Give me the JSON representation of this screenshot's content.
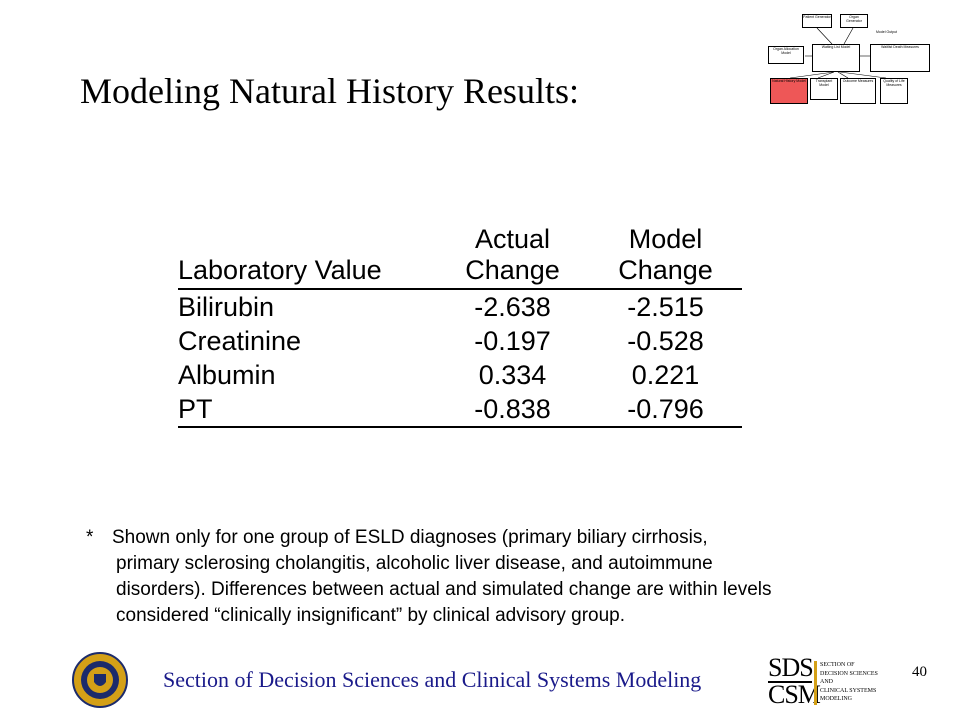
{
  "title": "Modeling Natural History Results:",
  "mini_diagram": {
    "boxes": [
      "Patient Generator",
      "Organ Generator",
      "Organ Allocation Model",
      "Waiting List Model",
      "Natural History Model",
      "Transplant Model",
      "Outcome Measures",
      "Quality of Life Measures",
      "Waitlist Death Measures",
      "Model Output"
    ],
    "highlight_color": "#ee5757"
  },
  "table": {
    "headers": {
      "col1": "Laboratory Value",
      "col2_line1": "Actual",
      "col2_line2": "Change",
      "col3_line1": "Model",
      "col3_line2": "Change"
    },
    "rows": [
      {
        "name": "Bilirubin",
        "actual": "-2.638",
        "model": "-2.515"
      },
      {
        "name": "Creatinine",
        "actual": "-0.197",
        "model": "-0.528"
      },
      {
        "name": "Albumin",
        "actual": "0.334",
        "model": "0.221"
      },
      {
        "name": "PT",
        "actual": "-0.838",
        "model": "-0.796"
      }
    ]
  },
  "note": {
    "star": "*",
    "line1": "Shown only for one group of ESLD diagnoses (primary biliary cirrhosis,",
    "line2": "primary sclerosing cholangitis, alcoholic liver disease, and autoimmune",
    "line3": "disorders). Differences between actual and simulated change are within levels",
    "line4": "considered “clinically insignificant” by clinical advisory group."
  },
  "footer": {
    "text": "Section of Decision Sciences and Clinical Systems Modeling",
    "page_number": "40",
    "logo_top": "SDS",
    "logo_bottom": "CSM",
    "logo_words": [
      "SECTION OF",
      "DECISION SCIENCES",
      "AND",
      "CLINICAL SYSTEMS",
      "MODELING"
    ]
  },
  "colors": {
    "footer_text": "#1a1a8a",
    "seal_gold": "#d4a017",
    "seal_blue": "#1c2b6b"
  }
}
